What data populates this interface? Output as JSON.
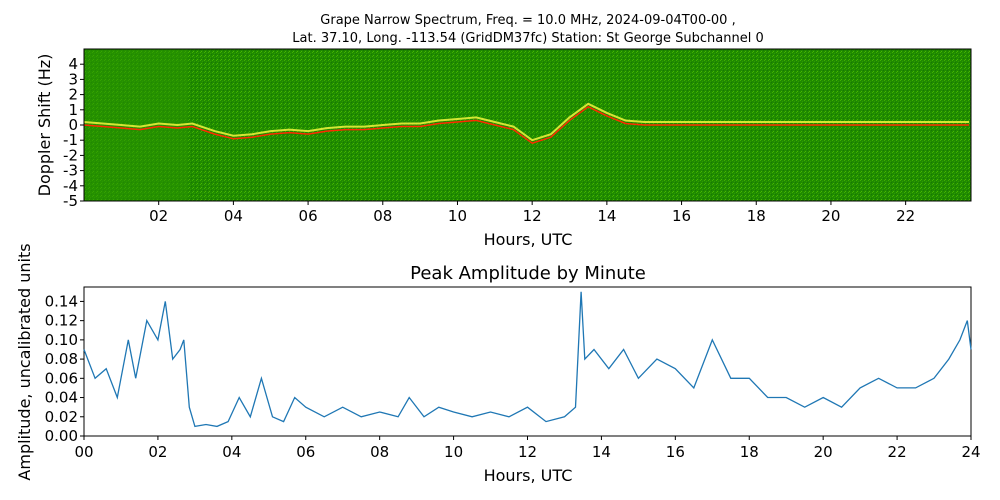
{
  "spectrogram": {
    "title_line1": "Grape Narrow Spectrum, Freq. = 10.0 MHz, 2024-09-04T00-00 ,",
    "title_line2": "Lat.  37.10, Long. -113.54 (GridDM37fc) Station: St George Subchannel 0",
    "ylabel": "Doppler Shift (Hz)",
    "xlabel": "Hours, UTC",
    "y_ticks": [
      "4",
      "3",
      "2",
      "1",
      "0",
      "-1",
      "-2",
      "-3",
      "-4",
      "-5"
    ],
    "x_ticks": [
      "02",
      "04",
      "06",
      "08",
      "10",
      "12",
      "14",
      "16",
      "18",
      "20",
      "22"
    ],
    "colors": {
      "background": "#1f8a00",
      "noise": "#3fa800",
      "signal": "#e8f03a",
      "carrier": "#ff2a00"
    }
  },
  "chart_data": [
    {
      "type": "heatmap",
      "title": "Grape Narrow Spectrum, Freq. = 10.0 MHz, 2024-09-04T00-00 , Lat.  37.10, Long. -113.54 (GridDM37fc) Station: St George Subchannel 0",
      "xlabel": "Hours, UTC",
      "ylabel": "Doppler Shift (Hz)",
      "xlim": [
        0,
        24
      ],
      "ylim": [
        -5,
        5
      ],
      "carrier_trace": {
        "x": [
          0,
          0.5,
          1.0,
          1.5,
          2.0,
          2.5,
          2.9,
          3.5,
          4.0,
          4.5,
          5.0,
          5.5,
          6.0,
          6.5,
          7.0,
          7.5,
          8.0,
          8.5,
          9.0,
          9.5,
          10.0,
          10.5,
          11.0,
          11.5,
          12.0,
          12.5,
          13.0,
          13.5,
          14.0,
          14.5,
          15.0,
          16.0,
          17.0,
          18.0,
          19.0,
          20.0,
          21.0,
          22.0,
          23.0,
          23.7
        ],
        "y": [
          0.0,
          -0.1,
          -0.2,
          -0.3,
          -0.1,
          -0.2,
          -0.1,
          -0.6,
          -0.9,
          -0.8,
          -0.6,
          -0.5,
          -0.6,
          -0.4,
          -0.3,
          -0.3,
          -0.2,
          -0.1,
          -0.1,
          0.1,
          0.2,
          0.3,
          0.0,
          -0.3,
          -1.2,
          -0.8,
          0.3,
          1.2,
          0.6,
          0.1,
          0.0,
          0.0,
          0.0,
          0.0,
          0.0,
          0.0,
          0.0,
          0.0,
          0.0,
          0.0
        ]
      }
    },
    {
      "type": "line",
      "title": "Peak Amplitude by Minute",
      "xlabel": "Hours, UTC",
      "ylabel": "Amplitude, uncalibrated units",
      "xlim": [
        0,
        24
      ],
      "ylim": [
        0,
        0.155
      ],
      "x_ticks": [
        "00",
        "02",
        "04",
        "06",
        "08",
        "10",
        "12",
        "14",
        "16",
        "18",
        "20",
        "22",
        "24"
      ],
      "y_ticks": [
        "0.00",
        "0.02",
        "0.04",
        "0.06",
        "0.08",
        "0.10",
        "0.12",
        "0.14"
      ],
      "series": [
        {
          "color": "#1f77b4",
          "x": [
            0.0,
            0.3,
            0.6,
            0.9,
            1.2,
            1.4,
            1.7,
            2.0,
            2.2,
            2.4,
            2.6,
            2.7,
            2.85,
            3.0,
            3.3,
            3.6,
            3.9,
            4.2,
            4.5,
            4.8,
            5.1,
            5.4,
            5.7,
            6.0,
            6.5,
            7.0,
            7.5,
            8.0,
            8.5,
            8.8,
            9.2,
            9.6,
            10.0,
            10.5,
            11.0,
            11.5,
            12.0,
            12.5,
            13.0,
            13.3,
            13.45,
            13.55,
            13.8,
            14.2,
            14.6,
            15.0,
            15.5,
            16.0,
            16.5,
            17.0,
            17.5,
            18.0,
            18.5,
            19.0,
            19.5,
            20.0,
            20.5,
            21.0,
            21.5,
            22.0,
            22.5,
            23.0,
            23.4,
            23.7,
            23.9,
            24.0
          ],
          "y": [
            0.09,
            0.06,
            0.07,
            0.04,
            0.1,
            0.06,
            0.12,
            0.1,
            0.14,
            0.08,
            0.09,
            0.1,
            0.03,
            0.01,
            0.012,
            0.01,
            0.015,
            0.04,
            0.02,
            0.06,
            0.02,
            0.015,
            0.04,
            0.03,
            0.02,
            0.03,
            0.02,
            0.025,
            0.02,
            0.04,
            0.02,
            0.03,
            0.025,
            0.02,
            0.025,
            0.02,
            0.03,
            0.015,
            0.02,
            0.03,
            0.15,
            0.08,
            0.09,
            0.07,
            0.09,
            0.06,
            0.08,
            0.07,
            0.05,
            0.1,
            0.06,
            0.06,
            0.04,
            0.04,
            0.03,
            0.04,
            0.03,
            0.05,
            0.06,
            0.05,
            0.05,
            0.06,
            0.08,
            0.1,
            0.12,
            0.09
          ]
        }
      ]
    }
  ]
}
